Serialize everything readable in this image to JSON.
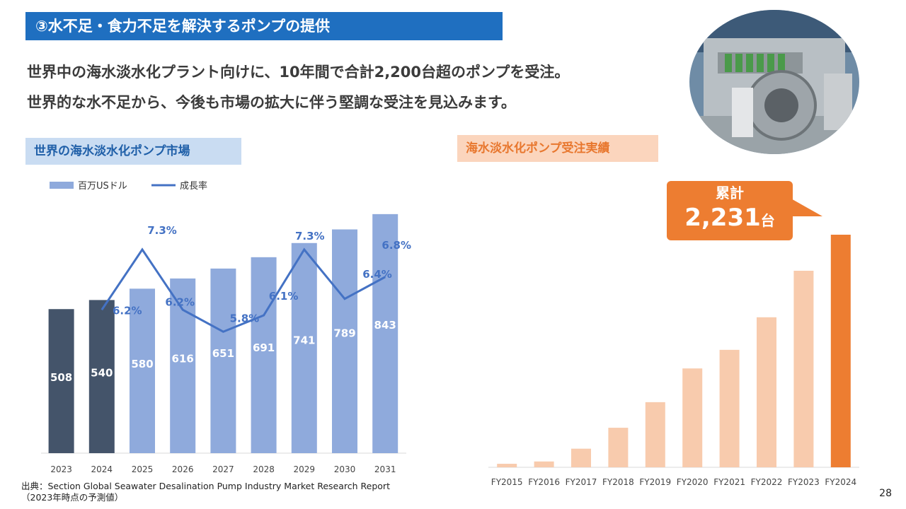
{
  "header": {
    "section_title": "③水不足・食力不足を解決するポンプの提供",
    "lead_line1": "世界中の海水淡水化プラント向けに、10年間で合計2,200台超のポンプを受注。",
    "lead_line2": "世界的な水不足から、今後も市場の拡大に伴う堅調な受注を見込みます。"
  },
  "left_section": {
    "label": "世界の海水淡水化ポンプ市場"
  },
  "right_section": {
    "label": "海水淡水化ポンプ受注実績"
  },
  "callout": {
    "line1": "累計",
    "value": "2,231",
    "unit": "台"
  },
  "footnote": {
    "line1": "出典：Section Global Seawater Desalination Pump Industry Market Research Report",
    "line2": "（2023年時点の予測値）"
  },
  "page_number": "28",
  "chart_data": [
    {
      "type": "bar",
      "categories": [
        "2023",
        "2024",
        "2025",
        "2026",
        "2027",
        "2028",
        "2029",
        "2030",
        "2031"
      ],
      "series": [
        {
          "name": "百万USドル",
          "type": "bar",
          "values": [
            508,
            540,
            580,
            616,
            651,
            691,
            741,
            789,
            843
          ]
        },
        {
          "name": "成長率",
          "type": "line",
          "values": [
            null,
            6.2,
            7.3,
            6.2,
            5.8,
            6.1,
            7.3,
            6.4,
            6.8
          ],
          "labels": [
            "",
            "6.2%",
            "7.3%",
            "6.2%",
            "5.8%",
            "6.1%",
            "7.3%",
            "6.4%",
            "6.8%"
          ]
        }
      ],
      "bar_colors": [
        "#44546a",
        "#44546a",
        "#8faadc",
        "#8faadc",
        "#8faadc",
        "#8faadc",
        "#8faadc",
        "#8faadc",
        "#8faadc"
      ],
      "line_color": "#4472c4",
      "legend_position": "top-left",
      "ylim_bar": [
        0,
        900
      ],
      "ylim_line": [
        4.5,
        8.5
      ],
      "grid": false
    },
    {
      "type": "bar",
      "categories": [
        "FY2015",
        "FY2016",
        "FY2017",
        "FY2018",
        "FY2019",
        "FY2020",
        "FY2021",
        "FY2022",
        "FY2023",
        "FY2024"
      ],
      "values": [
        15,
        25,
        80,
        170,
        280,
        425,
        505,
        645,
        845,
        1000
      ],
      "value_note": "relative cumulative scale (FY2024 = 2,231 units total)",
      "bar_colors": [
        "#f8cbad",
        "#f8cbad",
        "#f8cbad",
        "#f8cbad",
        "#f8cbad",
        "#f8cbad",
        "#f8cbad",
        "#f8cbad",
        "#f8cbad",
        "#ed7d31"
      ],
      "ylim": [
        0,
        1000
      ],
      "grid": false
    }
  ]
}
